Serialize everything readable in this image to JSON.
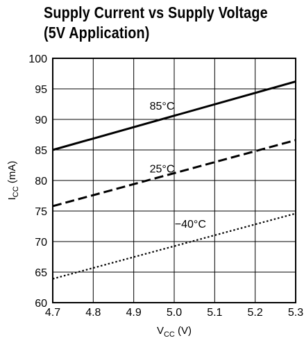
{
  "chart_data": {
    "type": "line",
    "title": [
      "Supply Current vs Supply Voltage",
      "(5V Application)"
    ],
    "xlabel": {
      "main": "V",
      "sub": "CC",
      "unit": " (V)"
    },
    "ylabel": {
      "main": "I",
      "sub": "CC",
      "unit": " (mA)"
    },
    "xlim": [
      4.7,
      5.3
    ],
    "ylim": [
      60,
      100
    ],
    "xticks": [
      4.7,
      4.8,
      4.9,
      5.0,
      5.1,
      5.2,
      5.3
    ],
    "xtick_labels": [
      "4.7",
      "4.8",
      "4.9",
      "5.0",
      "5.1",
      "5.2",
      "5.3"
    ],
    "yticks": [
      60,
      65,
      70,
      75,
      80,
      85,
      90,
      95,
      100
    ],
    "ytick_labels": [
      "60",
      "65",
      "70",
      "75",
      "80",
      "85",
      "90",
      "95",
      "100"
    ],
    "grid": true,
    "legend": "none",
    "series": [
      {
        "name": "85°C",
        "style": "solid",
        "x": [
          4.7,
          5.3
        ],
        "y": [
          85.0,
          96.2
        ],
        "label_at": [
          4.97,
          91.6
        ]
      },
      {
        "name": "25°C",
        "style": "dashed",
        "x": [
          4.7,
          5.3
        ],
        "y": [
          75.8,
          86.6
        ],
        "label_at": [
          4.97,
          81.3
        ]
      },
      {
        "name": "−40°C",
        "style": "dotted",
        "x": [
          4.7,
          5.3
        ],
        "y": [
          63.9,
          74.6
        ],
        "label_at": [
          5.04,
          72.3
        ]
      }
    ]
  }
}
